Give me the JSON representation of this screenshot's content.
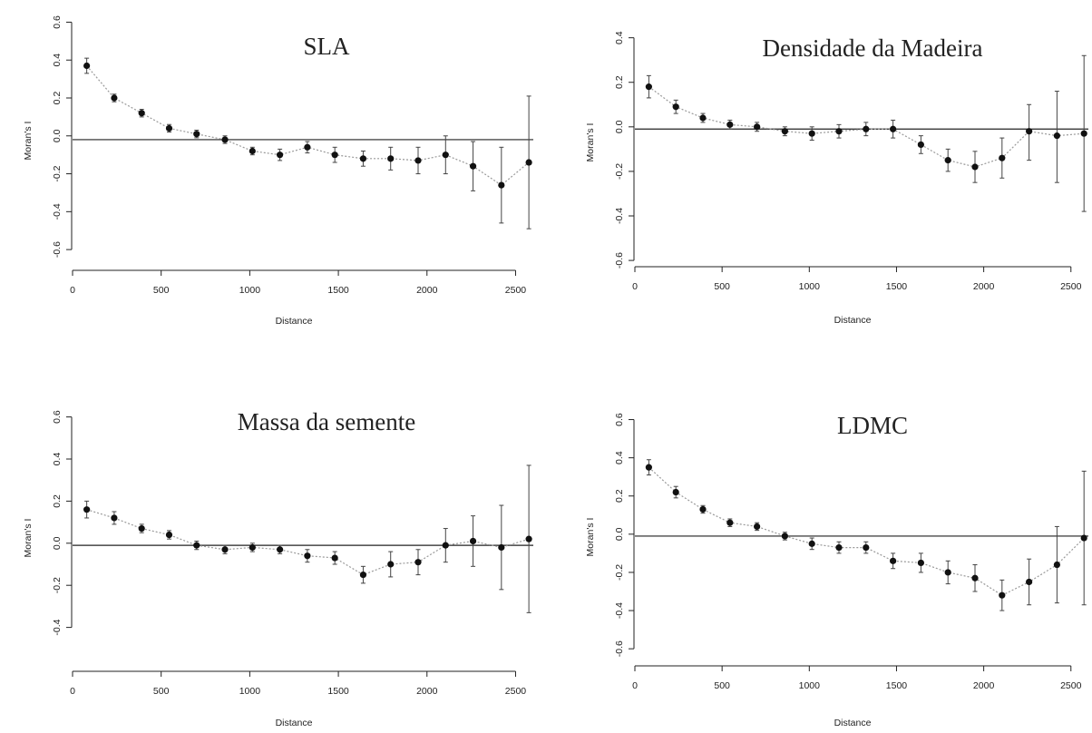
{
  "chart_data": [
    {
      "type": "scatter",
      "title": "SLA",
      "xlabel": "Distance",
      "ylabel": "Moran's I",
      "xlim": [
        0,
        2600
      ],
      "ylim": [
        -0.7,
        0.65
      ],
      "xticks": [
        0,
        500,
        1000,
        1500,
        2000,
        2500
      ],
      "yticks": [
        -0.6,
        -0.4,
        -0.2,
        0.0,
        0.2,
        0.4,
        0.6
      ],
      "reference_y": -0.02,
      "grid": false,
      "x": [
        80,
        235,
        390,
        545,
        700,
        860,
        1015,
        1170,
        1325,
        1480,
        1640,
        1795,
        1950,
        2105,
        2260,
        2420,
        2575
      ],
      "y": [
        0.37,
        0.2,
        0.12,
        0.04,
        0.01,
        -0.02,
        -0.08,
        -0.1,
        -0.06,
        -0.1,
        -0.12,
        -0.12,
        -0.13,
        -0.1,
        -0.16,
        -0.26,
        -0.14
      ],
      "err_low": [
        0.33,
        0.18,
        0.1,
        0.02,
        -0.01,
        -0.04,
        -0.1,
        -0.13,
        -0.09,
        -0.14,
        -0.16,
        -0.18,
        -0.2,
        -0.2,
        -0.29,
        -0.46,
        -0.49
      ],
      "err_high": [
        0.41,
        0.22,
        0.14,
        0.06,
        0.03,
        0.0,
        -0.06,
        -0.07,
        -0.03,
        -0.06,
        -0.08,
        -0.06,
        -0.06,
        0.0,
        -0.03,
        -0.06,
        0.21
      ]
    },
    {
      "type": "scatter",
      "title": "Densidade da Madeira",
      "xlabel": "Distance",
      "ylabel": "Moran's I",
      "xlim": [
        0,
        2600
      ],
      "ylim": [
        -0.62,
        0.48
      ],
      "xticks": [
        0,
        500,
        1000,
        1500,
        2000,
        2500
      ],
      "yticks": [
        -0.6,
        -0.4,
        -0.2,
        0.0,
        0.2,
        0.4
      ],
      "reference_y": -0.01,
      "grid": false,
      "x": [
        80,
        235,
        390,
        545,
        700,
        860,
        1015,
        1170,
        1325,
        1480,
        1640,
        1795,
        1950,
        2105,
        2260,
        2420,
        2575
      ],
      "y": [
        0.18,
        0.09,
        0.04,
        0.01,
        0.0,
        -0.02,
        -0.03,
        -0.02,
        -0.01,
        -0.01,
        -0.08,
        -0.15,
        -0.18,
        -0.14,
        -0.02,
        -0.04,
        -0.03
      ],
      "err_low": [
        0.13,
        0.06,
        0.02,
        -0.01,
        -0.02,
        -0.04,
        -0.06,
        -0.05,
        -0.04,
        -0.05,
        -0.12,
        -0.2,
        -0.25,
        -0.23,
        -0.15,
        -0.25,
        -0.38
      ],
      "err_high": [
        0.23,
        0.12,
        0.06,
        0.03,
        0.02,
        0.0,
        0.0,
        0.01,
        0.02,
        0.03,
        -0.04,
        -0.1,
        -0.11,
        -0.05,
        0.1,
        0.16,
        0.32
      ]
    },
    {
      "type": "scatter",
      "title": "Massa da semente",
      "xlabel": "Distance",
      "ylabel": "Moran's I",
      "xlim": [
        0,
        2600
      ],
      "ylim": [
        -0.6,
        0.65
      ],
      "xticks": [
        0,
        500,
        1000,
        1500,
        2000,
        2500
      ],
      "yticks": [
        -0.4,
        -0.2,
        0.0,
        0.2,
        0.4,
        0.6
      ],
      "reference_y": -0.01,
      "grid": false,
      "x": [
        80,
        235,
        390,
        545,
        700,
        860,
        1015,
        1170,
        1325,
        1480,
        1640,
        1795,
        1950,
        2105,
        2260,
        2420,
        2575
      ],
      "y": [
        0.16,
        0.12,
        0.07,
        0.04,
        -0.01,
        -0.03,
        -0.02,
        -0.03,
        -0.06,
        -0.07,
        -0.15,
        -0.1,
        -0.09,
        -0.01,
        0.01,
        -0.02,
        0.02
      ],
      "err_low": [
        0.12,
        0.09,
        0.05,
        0.02,
        -0.03,
        -0.05,
        -0.04,
        -0.05,
        -0.09,
        -0.1,
        -0.19,
        -0.16,
        -0.15,
        -0.09,
        -0.11,
        -0.22,
        -0.33
      ],
      "err_high": [
        0.2,
        0.15,
        0.09,
        0.06,
        0.01,
        -0.01,
        0.0,
        -0.01,
        -0.03,
        -0.04,
        -0.11,
        -0.04,
        -0.03,
        0.07,
        0.13,
        0.18,
        0.37
      ]
    },
    {
      "type": "scatter",
      "title": "LDMC",
      "xlabel": "Distance",
      "ylabel": "Moran's I",
      "xlim": [
        0,
        2600
      ],
      "ylim": [
        -0.68,
        0.65
      ],
      "xticks": [
        0,
        500,
        1000,
        1500,
        2000,
        2500
      ],
      "yticks": [
        -0.6,
        -0.4,
        -0.2,
        0.0,
        0.2,
        0.4,
        0.6
      ],
      "reference_y": -0.01,
      "grid": false,
      "x": [
        80,
        235,
        390,
        545,
        700,
        860,
        1015,
        1170,
        1325,
        1480,
        1640,
        1795,
        1950,
        2105,
        2260,
        2420,
        2575
      ],
      "y": [
        0.35,
        0.22,
        0.13,
        0.06,
        0.04,
        -0.01,
        -0.05,
        -0.07,
        -0.07,
        -0.14,
        -0.15,
        -0.2,
        -0.23,
        -0.32,
        -0.25,
        -0.16,
        -0.02
      ],
      "err_low": [
        0.31,
        0.19,
        0.11,
        0.04,
        0.02,
        -0.03,
        -0.08,
        -0.1,
        -0.1,
        -0.18,
        -0.2,
        -0.26,
        -0.3,
        -0.4,
        -0.37,
        -0.36,
        -0.37
      ],
      "err_high": [
        0.39,
        0.25,
        0.15,
        0.08,
        0.06,
        0.01,
        -0.02,
        -0.04,
        -0.04,
        -0.1,
        -0.1,
        -0.14,
        -0.16,
        -0.24,
        -0.13,
        0.04,
        0.33
      ]
    }
  ]
}
